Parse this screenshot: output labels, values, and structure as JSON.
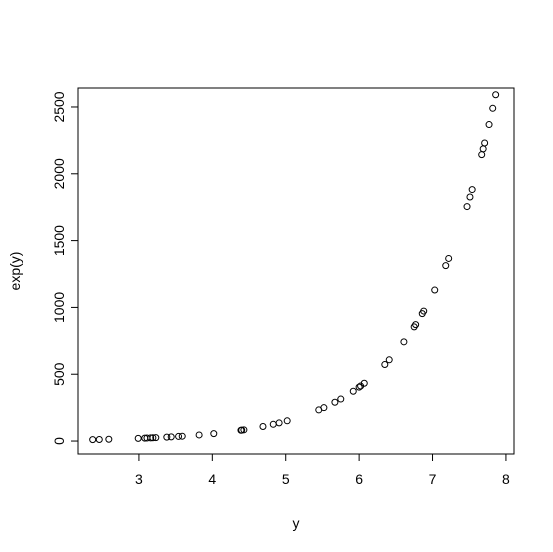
{
  "chart_data": {
    "type": "scatter",
    "x_label": "y",
    "y_label": "exp(y)",
    "x": [
      2.37,
      2.46,
      2.59,
      2.99,
      3.08,
      3.11,
      3.16,
      3.19,
      3.23,
      3.38,
      3.44,
      3.54,
      3.59,
      3.82,
      4.02,
      4.39,
      4.4,
      4.43,
      4.69,
      4.83,
      4.91,
      5.02,
      5.45,
      5.52,
      5.67,
      5.75,
      5.92,
      6.0,
      6.02,
      6.07,
      6.35,
      6.41,
      6.61,
      6.75,
      6.77,
      6.86,
      6.88,
      7.03,
      7.18,
      7.22,
      7.47,
      7.51,
      7.54,
      7.67,
      7.69,
      7.71,
      7.77,
      7.82,
      7.86
    ],
    "values": [
      10.7,
      11.7,
      13.3,
      19.9,
      21.8,
      22.4,
      23.6,
      24.3,
      25.3,
      29.4,
      31.2,
      34.5,
      36.2,
      45.6,
      55.7,
      80.6,
      81.5,
      83.9,
      108.9,
      125.2,
      135.6,
      151.4,
      232.8,
      249.6,
      290.0,
      314.2,
      372.4,
      403.4,
      411.6,
      432.7,
      572.5,
      607.9,
      742.4,
      854.1,
      871.3,
      953.4,
      972.6,
      1130.0,
      1312.9,
      1366.4,
      1754.6,
      1826.2,
      1881.8,
      2143.1,
      2186.4,
      2230.6,
      2368.5,
      2490.0,
      2591.7
    ],
    "color": "#000000",
    "xlim": [
      2.17,
      8.11
    ],
    "ylim": [
      -97,
      2642
    ],
    "xticks": [
      3,
      4,
      5,
      6,
      7,
      8
    ],
    "yticks": [
      0,
      500,
      1000,
      1500,
      2000,
      2500
    ]
  }
}
